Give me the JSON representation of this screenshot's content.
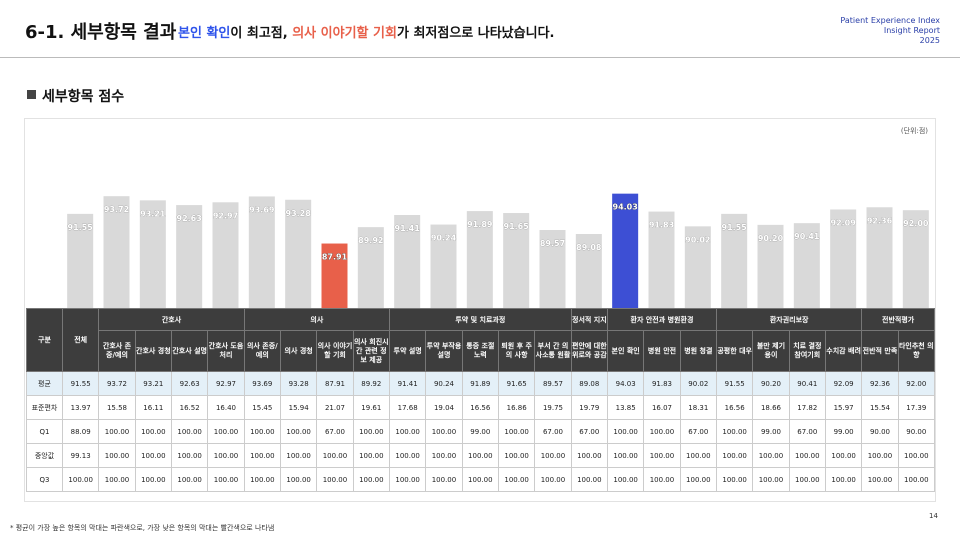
{
  "header": {
    "title": "6-1. 세부항목 결과",
    "subtitle_parts": [
      {
        "text": "본인 확인",
        "color": "#2f54eb"
      },
      {
        "text": "이 최고점, ",
        "color": null
      },
      {
        "text": "의사 이야기할 기회",
        "color": "#e8604a"
      },
      {
        "text": "가 최저점으로 나타났습니다.",
        "color": null
      }
    ],
    "report": [
      "Patient Experience Index",
      "Insight Report",
      "2025"
    ]
  },
  "section": "세부항목 점수",
  "chart_data": {
    "type": "bar",
    "unit": "(단위:점)",
    "groups": [
      {
        "name": null,
        "categories": [
          "전체"
        ]
      },
      {
        "name": "간호사",
        "categories": [
          "간호사 존중/예의",
          "간호사 경청",
          "간호사 설명",
          "간호사 도움처리"
        ]
      },
      {
        "name": "의사",
        "categories": [
          "의사 존중/예의",
          "의사 경청",
          "의사 이야기할 기회",
          "의사 회진시간 관련 정보 제공"
        ]
      },
      {
        "name": "투약 및 치료과정",
        "categories": [
          "투약 설명",
          "투약 부작용 설명",
          "통증 조절 노력",
          "퇴원 후 주의 사항",
          "부서 간 의사소통 원활"
        ]
      },
      {
        "name": "정서적 지지",
        "categories": [
          "편안에 대한 위로와 공감"
        ]
      },
      {
        "name": "환자 안전과 병원환경",
        "categories": [
          "본인 확인",
          "병원 안전",
          "병원 청결"
        ]
      },
      {
        "name": "환자권리보장",
        "categories": [
          "공평한 대우",
          "불만 제기 용이",
          "치료 결정 참여기회",
          "수치감 배려"
        ]
      },
      {
        "name": "전반적평가",
        "categories": [
          "전반적 만족",
          "타인추천 의향"
        ]
      }
    ],
    "values": [
      91.55,
      93.72,
      93.21,
      92.63,
      92.97,
      93.69,
      93.28,
      87.91,
      89.92,
      91.41,
      90.24,
      91.89,
      91.65,
      89.57,
      89.08,
      94.03,
      91.83,
      90.02,
      91.55,
      90.2,
      90.41,
      92.09,
      92.36,
      92.0
    ],
    "value_labels": [
      "91.55",
      "93.72",
      "93.21",
      "92.63",
      "92.97",
      "93.69",
      "93.28",
      "87.91",
      "89.92",
      "91.41",
      "90.24",
      "91.89",
      "91.65",
      "89.57",
      "89.08",
      "94.03",
      "91.83",
      "90.02",
      "91.55",
      "90.20",
      "90.41",
      "92.09",
      "92.36",
      "92.00"
    ],
    "ylim": [
      80,
      100
    ],
    "color": "#d9d9d9",
    "max_color": "#3d4fd4",
    "min_color": "#e8604a"
  },
  "table": {
    "corner": "구분",
    "rows": [
      {
        "label": "평균"
      },
      {
        "label": "표준편차",
        "cells": [
          "13.97",
          "15.58",
          "16.11",
          "16.52",
          "16.40",
          "15.45",
          "15.94",
          "21.07",
          "19.61",
          "17.68",
          "19.04",
          "16.56",
          "16.86",
          "19.75",
          "19.79",
          "13.85",
          "16.07",
          "18.31",
          "16.56",
          "18.66",
          "17.82",
          "15.97",
          "15.54",
          "17.39"
        ]
      },
      {
        "label": "Q1",
        "cells": [
          "88.09",
          "100.00",
          "100.00",
          "100.00",
          "100.00",
          "100.00",
          "100.00",
          "67.00",
          "100.00",
          "100.00",
          "100.00",
          "99.00",
          "100.00",
          "67.00",
          "67.00",
          "100.00",
          "100.00",
          "67.00",
          "100.00",
          "99.00",
          "67.00",
          "99.00",
          "90.00",
          "90.00"
        ]
      },
      {
        "label": "중앙값",
        "cells": [
          "99.13",
          "100.00",
          "100.00",
          "100.00",
          "100.00",
          "100.00",
          "100.00",
          "100.00",
          "100.00",
          "100.00",
          "100.00",
          "100.00",
          "100.00",
          "100.00",
          "100.00",
          "100.00",
          "100.00",
          "100.00",
          "100.00",
          "100.00",
          "100.00",
          "100.00",
          "100.00",
          "100.00"
        ]
      },
      {
        "label": "Q3",
        "cells": [
          "100.00",
          "100.00",
          "100.00",
          "100.00",
          "100.00",
          "100.00",
          "100.00",
          "100.00",
          "100.00",
          "100.00",
          "100.00",
          "100.00",
          "100.00",
          "100.00",
          "100.00",
          "100.00",
          "100.00",
          "100.00",
          "100.00",
          "100.00",
          "100.00",
          "100.00",
          "100.00",
          "100.00"
        ]
      }
    ]
  },
  "footnote": "* 평균이 가장 높은 항목의 막대는 파란색으로, 가장 낮은 항목의 막대는 빨간색으로 나타냄",
  "page": "14"
}
